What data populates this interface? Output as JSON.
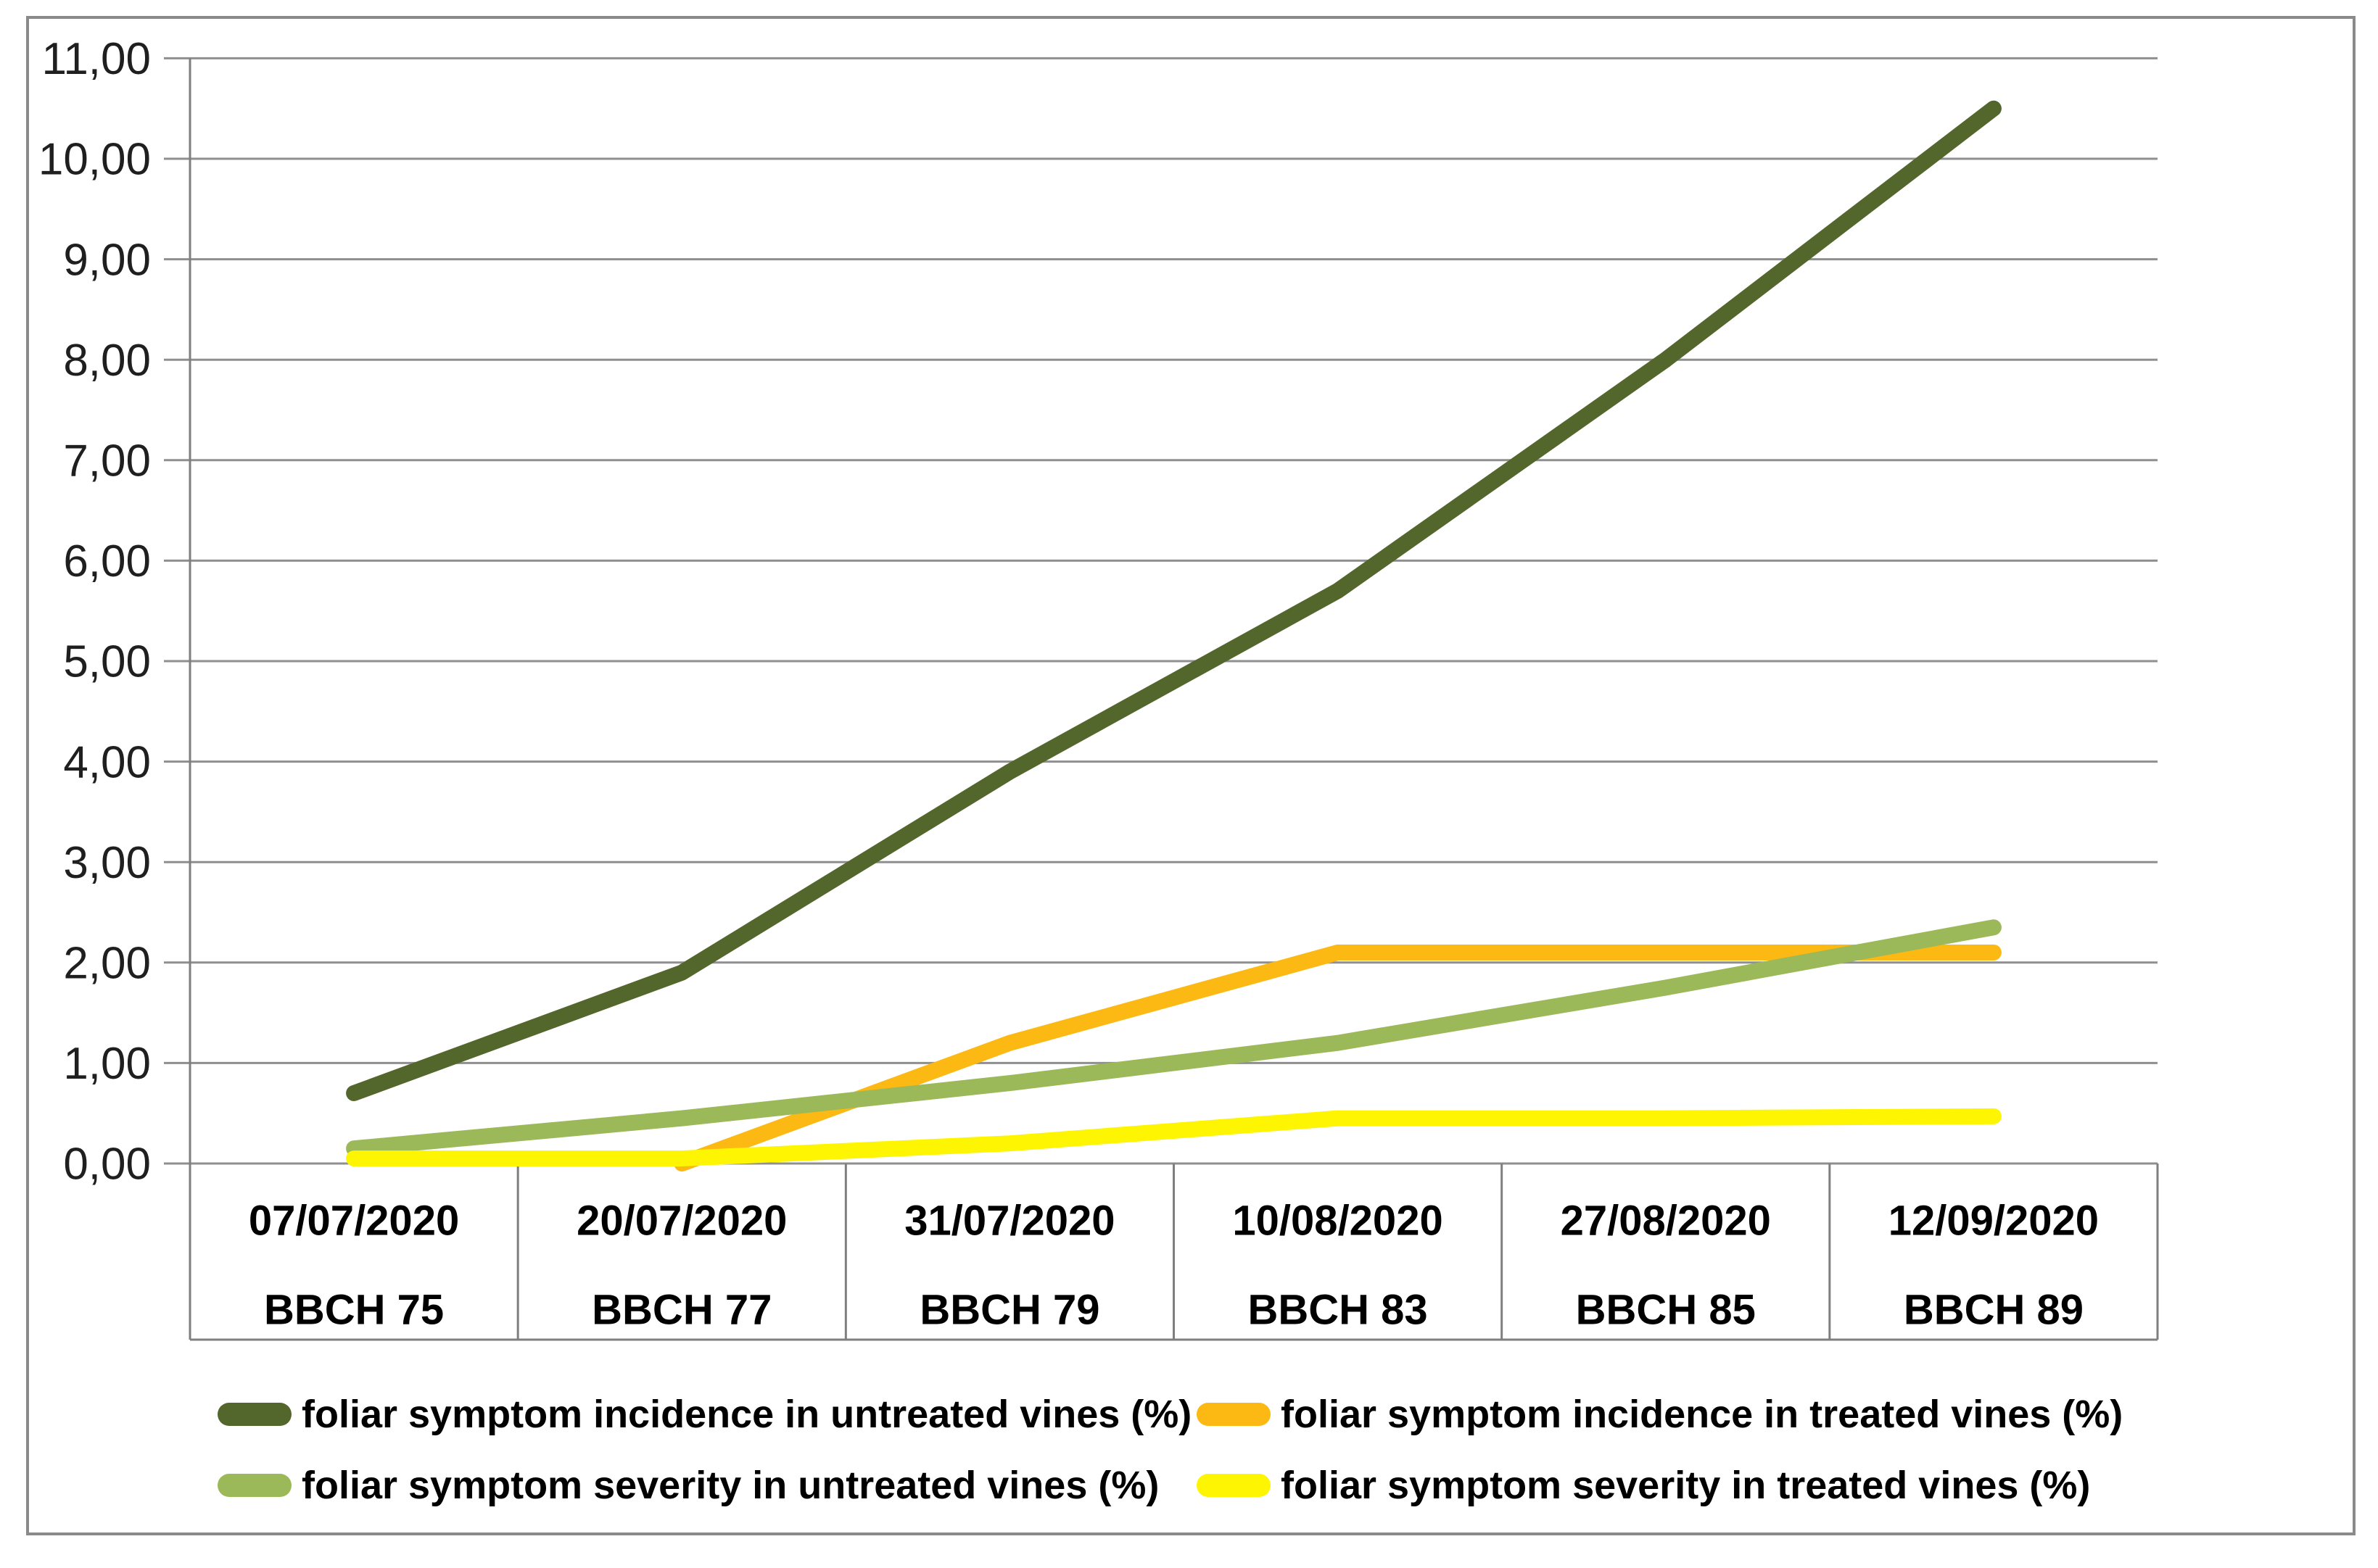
{
  "chart_data": {
    "type": "line",
    "title": "",
    "grid": true,
    "legend_position": "bottom",
    "y_axis": {
      "min": 0,
      "max": 11,
      "step": 1,
      "decimal_style": "comma",
      "tick_labels": [
        "0,00",
        "1,00",
        "2,00",
        "3,00",
        "4,00",
        "5,00",
        "6,00",
        "7,00",
        "8,00",
        "9,00",
        "10,00",
        "11,00"
      ]
    },
    "x_categories": [
      {
        "date": "07/07/2020",
        "bbch": "BBCH 75"
      },
      {
        "date": "20/07/2020",
        "bbch": "BBCH 77"
      },
      {
        "date": "31/07/2020",
        "bbch": "BBCH 79"
      },
      {
        "date": "10/08/2020",
        "bbch": "BBCH 83"
      },
      {
        "date": "27/08/2020",
        "bbch": "BBCH 85"
      },
      {
        "date": "12/09/2020",
        "bbch": "BBCH 89"
      }
    ],
    "series": [
      {
        "name": "foliar symptom incidence in untreated vines (%)",
        "color": "#53662b",
        "values": [
          0.7,
          1.9,
          3.9,
          5.7,
          8.0,
          10.5
        ]
      },
      {
        "name": "foliar symptom incidence in treated vines (%)",
        "color": "#fcb813",
        "values": [
          null,
          0.0,
          1.2,
          2.1,
          2.1,
          2.1
        ]
      },
      {
        "name": "foliar symptom severity in untreated vines (%)",
        "color": "#9bb958",
        "values": [
          0.15,
          0.45,
          0.8,
          1.2,
          1.75,
          2.35
        ]
      },
      {
        "name": "foliar symptom severity in treated vines (%)",
        "color": "#fdf502",
        "values": [
          0.05,
          0.05,
          0.2,
          0.45,
          0.45,
          0.47
        ]
      }
    ],
    "colors": {
      "gridline": "#8f8f8f",
      "axis": "#7f7f7f",
      "frame_border": "#8a8a8a",
      "label_text": "#000000"
    }
  }
}
